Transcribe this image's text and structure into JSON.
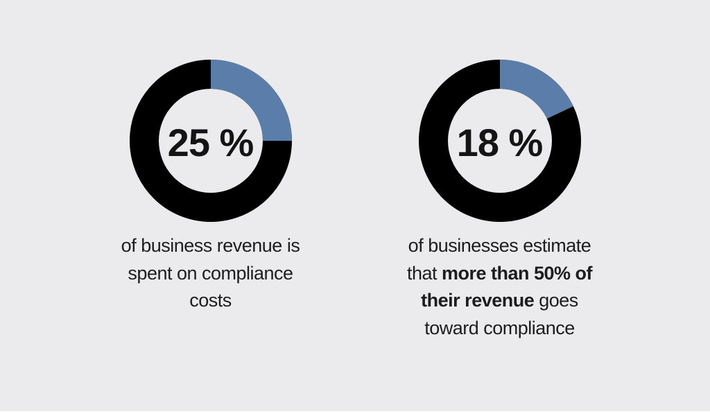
{
  "background_color": "#ebebed",
  "accent_color": "#5a7ea9",
  "segment_remainder_color": "#000000",
  "text_color": "#1d1d1f",
  "chart_data": [
    {
      "type": "pie",
      "subtype": "donut",
      "center_label": "25 %",
      "values": [
        25,
        75
      ],
      "labels": [
        "share of revenue spent on compliance",
        "remainder"
      ],
      "colors": [
        "#5a7ea9",
        "#000000"
      ],
      "start_angle_deg": 0,
      "direction": "clockwise",
      "caption_text": "of business revenue is spent on compliance costs",
      "caption_lines": [
        [
          {
            "text": "of business revenue is",
            "bold": false
          }
        ],
        [
          {
            "text": "spent on compliance",
            "bold": false
          }
        ],
        [
          {
            "text": "costs",
            "bold": false
          }
        ]
      ]
    },
    {
      "type": "pie",
      "subtype": "donut",
      "center_label": "18 %",
      "values": [
        18,
        82
      ],
      "labels": [
        "businesses estimating >50% revenue toward compliance",
        "remainder"
      ],
      "colors": [
        "#5a7ea9",
        "#000000"
      ],
      "start_angle_deg": 0,
      "direction": "clockwise",
      "caption_text": "of businesses estimate that more than 50% of their revenue goes toward compliance",
      "caption_lines": [
        [
          {
            "text": "of businesses estimate",
            "bold": false
          }
        ],
        [
          {
            "text": "that ",
            "bold": false
          },
          {
            "text": "more than 50% of",
            "bold": true
          }
        ],
        [
          {
            "text": "their revenue",
            "bold": true
          },
          {
            "text": " goes",
            "bold": false
          }
        ],
        [
          {
            "text": "toward compliance",
            "bold": false
          }
        ]
      ]
    }
  ]
}
